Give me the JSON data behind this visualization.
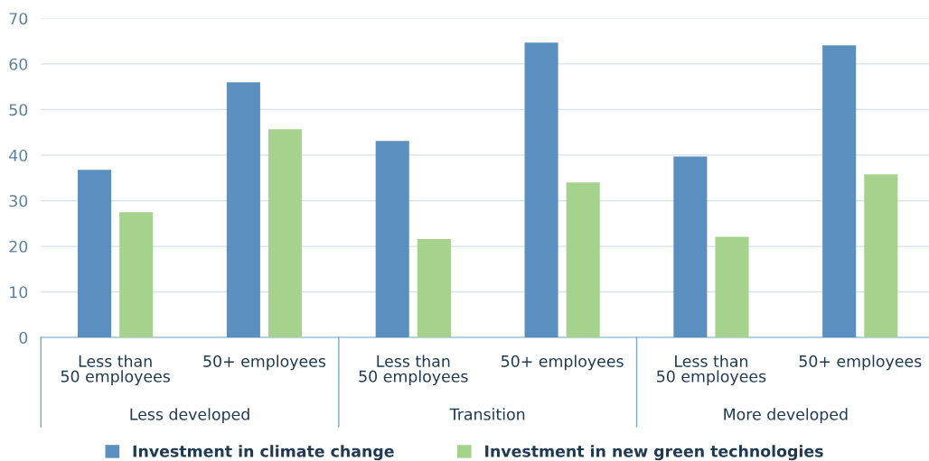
{
  "chart_data": {
    "type": "bar",
    "categories": [
      "Less than\n50 employees",
      "50+ employees",
      "Less than\n50 employees",
      "50+ employees",
      "Less than\n50 employees",
      "50+ employees"
    ],
    "series": [
      {
        "name": "Investment in climate change",
        "color": "#5b8fbf",
        "values": [
          36.8,
          56.0,
          43.1,
          64.7,
          39.7,
          64.1
        ]
      },
      {
        "name": "Investment in new green technologies",
        "color": "#a5d28c",
        "values": [
          27.5,
          45.7,
          21.6,
          34.0,
          22.1,
          35.8
        ]
      }
    ],
    "annotations": [
      "Less developed",
      "Transition",
      "More developed"
    ],
    "ylim": [
      0,
      70
    ],
    "yticks": [
      0,
      10,
      20,
      30,
      40,
      50,
      60,
      70
    ],
    "grid": "y",
    "legend": "bottom"
  }
}
